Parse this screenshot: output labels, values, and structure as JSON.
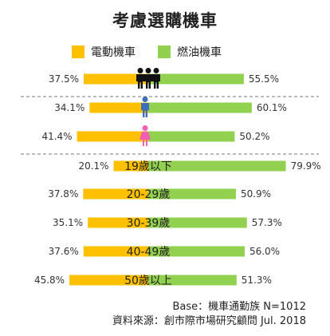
{
  "chart_data": {
    "type": "bar",
    "title": "考慮選購機車",
    "series": [
      {
        "name": "電動機車",
        "color": "#ffc000",
        "values": [
          37.5,
          34.1,
          41.4,
          20.1,
          37.8,
          35.1,
          37.6,
          45.8
        ]
      },
      {
        "name": "燃油機車",
        "color": "#92d050",
        "values": [
          55.5,
          60.1,
          50.2,
          79.9,
          50.9,
          57.3,
          56.0,
          51.3
        ]
      }
    ],
    "categories": [
      "全體",
      "男性",
      "女性",
      "19歲以下",
      "20-29歲",
      "30-39歲",
      "40-49歲",
      "50歲以上"
    ],
    "category_labels": [
      "",
      "",
      "",
      "19歲以下",
      "20-29歲",
      "30-39歲",
      "40-49歲",
      "50歲以上"
    ],
    "icons": [
      "people-group-icon",
      "male-icon",
      "female-icon",
      "",
      "",
      "",
      "",
      ""
    ],
    "icon_colors": {
      "group": "#111111",
      "male": "#3d6fb6",
      "female": "#f05fb4"
    },
    "value_labels_left": [
      "37.5%",
      "34.1%",
      "41.4%",
      "20.1%",
      "37.8%",
      "35.1%",
      "37.6%",
      "45.8%"
    ],
    "value_labels_right": [
      "55.5%",
      "60.1%",
      "50.2%",
      "79.9%",
      "50.9%",
      "57.3%",
      "56.0%",
      "51.3%"
    ],
    "xlim": [
      0,
      100
    ],
    "legend": "top"
  },
  "footer": {
    "base": "Base：機車通勤族 N=1012",
    "source": "資料來源：創市際市場研究顧問 Jul. 2018"
  }
}
